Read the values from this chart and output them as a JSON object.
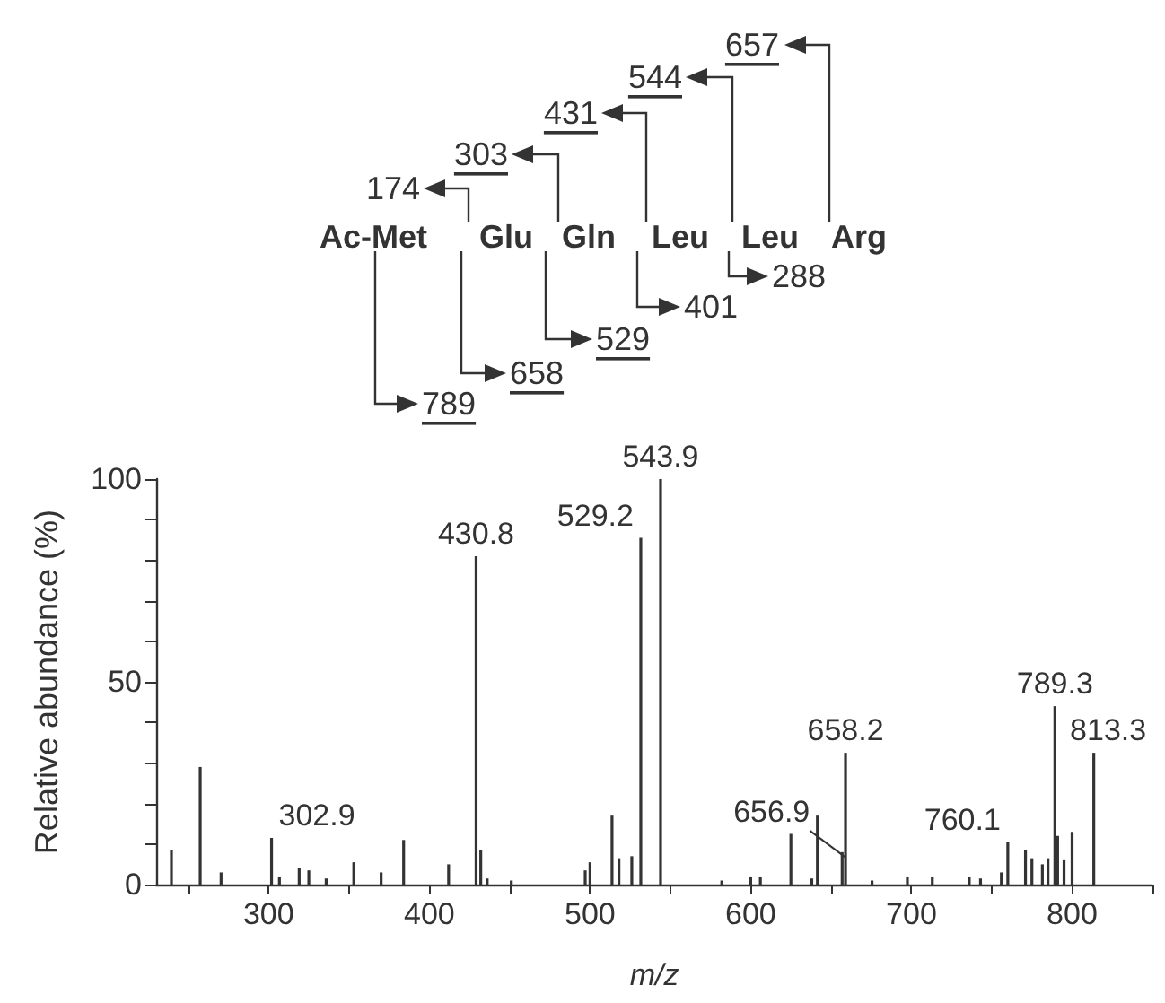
{
  "chart_data": {
    "type": "bar",
    "xlabel": "m/z",
    "ylabel": "Relative abundance (%)",
    "x": [
      239.5,
      257.4,
      270.4,
      301.8,
      306.7,
      319,
      325,
      335.8,
      353,
      370,
      384,
      412,
      429.1,
      432,
      436,
      451,
      497,
      500,
      513.7,
      518,
      526,
      531.6,
      543.9,
      582,
      600,
      606,
      625,
      638,
      641.5,
      656.9,
      659,
      675.5,
      697.5,
      713,
      736,
      743,
      756,
      760,
      771,
      775,
      781.5,
      785,
      789.3,
      791,
      795,
      800,
      813.5
    ],
    "values": [
      8.5,
      29,
      3,
      11.5,
      2,
      4,
      3.5,
      1.5,
      5.5,
      3,
      11,
      5,
      81,
      8.5,
      1.5,
      1,
      3.5,
      5.5,
      17,
      6.5,
      7,
      85.5,
      100,
      1,
      2,
      2,
      12.5,
      1.5,
      17,
      8,
      32.5,
      1,
      2,
      2,
      2,
      1.5,
      3,
      10.5,
      8.5,
      6.5,
      5,
      6.5,
      44,
      12,
      6,
      13,
      32.5
    ],
    "color": "#333333",
    "xlim": [
      230,
      850
    ],
    "xticks": [
      {
        "value": 250,
        "label": null
      },
      300,
      {
        "value": 350,
        "label": null
      },
      400,
      {
        "value": 450,
        "label": null
      },
      500,
      {
        "value": 550,
        "label": null
      },
      600,
      {
        "value": 650,
        "label": null
      },
      700,
      {
        "value": 750,
        "label": null
      },
      800,
      {
        "value": 850,
        "label": null
      }
    ],
    "ylim": [
      0,
      100
    ],
    "yticks": [
      0,
      {
        "value": 10,
        "label": null
      },
      {
        "value": 20,
        "label": null
      },
      {
        "value": 30,
        "label": null
      },
      {
        "value": 40,
        "label": null
      },
      50,
      {
        "value": 60,
        "label": null
      },
      {
        "value": 70,
        "label": null
      },
      {
        "value": 80,
        "label": null
      },
      {
        "value": 90,
        "label": null
      },
      100
    ],
    "annotations": [
      {
        "text": "302.9",
        "x": 301.8,
        "y": 11.5
      },
      {
        "text": "430.8",
        "x": 429.1,
        "y": 81
      },
      {
        "text": "529.2",
        "x": 531.6,
        "y": 85.5
      },
      {
        "text": "543.9",
        "x": 543.9,
        "y": 100
      },
      {
        "text": "656.9",
        "x": 656.9,
        "y": 8
      },
      {
        "text": "658.2",
        "x": 659,
        "y": 32.5
      },
      {
        "text": "760.1",
        "x": 760,
        "y": 10.5
      },
      {
        "text": "789.3",
        "x": 789.3,
        "y": 44
      },
      {
        "text": "813.3",
        "x": 813.5,
        "y": 32.5
      },
      "Ac-Met",
      "Glu",
      "Gln",
      "Leu",
      "Leu",
      "Arg",
      "174",
      "303",
      "431",
      "544",
      "657",
      "288",
      "401",
      "529",
      "658",
      "789"
    ]
  }
}
